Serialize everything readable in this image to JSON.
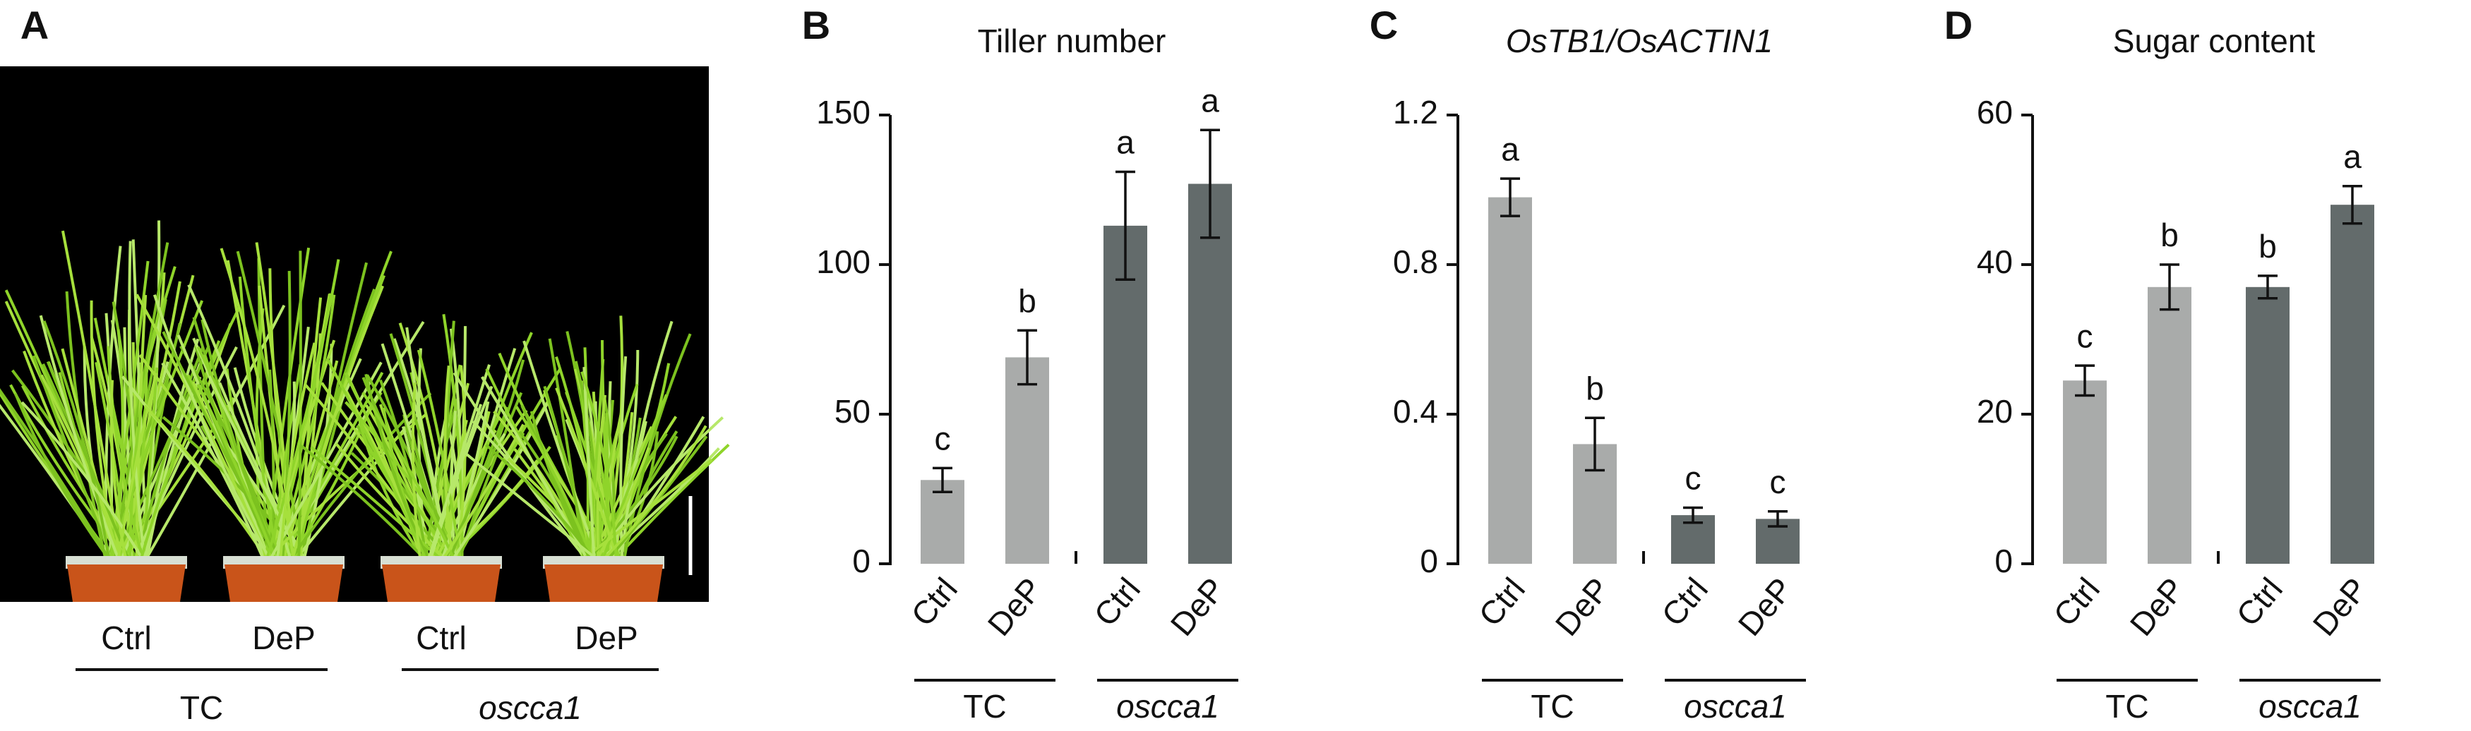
{
  "panel_a": {
    "label": "A",
    "categories": [
      "Ctrl",
      "DeP",
      "Ctrl",
      "DeP"
    ],
    "groups": [
      "TC",
      "oscca1"
    ]
  },
  "chart_data": [
    {
      "type": "bar",
      "panel": "B",
      "title": "Tiller number",
      "categories": [
        "Ctrl",
        "DeP",
        "Ctrl",
        "DeP"
      ],
      "groups": [
        "TC",
        "oscca1"
      ],
      "values": [
        28,
        69,
        113,
        127
      ],
      "errors": [
        4,
        9,
        18,
        18
      ],
      "annotations": [
        "c",
        "b",
        "a",
        "a"
      ],
      "colors": [
        "#a9abaa",
        "#a9abaa",
        "#636b6b",
        "#636b6b"
      ],
      "ylim": [
        0,
        150
      ],
      "yticks": [
        0,
        50,
        100,
        150
      ]
    },
    {
      "type": "bar",
      "panel": "C",
      "title": "OsTB1/OsACTIN1",
      "categories": [
        "Ctrl",
        "DeP",
        "Ctrl",
        "DeP"
      ],
      "groups": [
        "TC",
        "oscca1"
      ],
      "values": [
        0.98,
        0.32,
        0.13,
        0.12
      ],
      "errors": [
        0.05,
        0.07,
        0.02,
        0.02
      ],
      "annotations": [
        "a",
        "b",
        "c",
        "c"
      ],
      "colors": [
        "#a9abaa",
        "#a9abaa",
        "#636b6b",
        "#636b6b"
      ],
      "ylim": [
        0,
        1.2
      ],
      "yticks": [
        0,
        0.4,
        0.8,
        1.2
      ]
    },
    {
      "type": "bar",
      "panel": "D",
      "title": "Sugar content",
      "categories": [
        "Ctrl",
        "DeP",
        "Ctrl",
        "DeP"
      ],
      "groups": [
        "TC",
        "oscca1"
      ],
      "values": [
        24.5,
        37,
        37,
        48
      ],
      "errors": [
        2,
        3,
        1.5,
        2.5
      ],
      "annotations": [
        "c",
        "b",
        "b",
        "a"
      ],
      "colors": [
        "#a9abaa",
        "#a9abaa",
        "#636b6b",
        "#636b6b"
      ],
      "ylim": [
        0,
        60
      ],
      "yticks": [
        0,
        20,
        40,
        60
      ]
    }
  ]
}
